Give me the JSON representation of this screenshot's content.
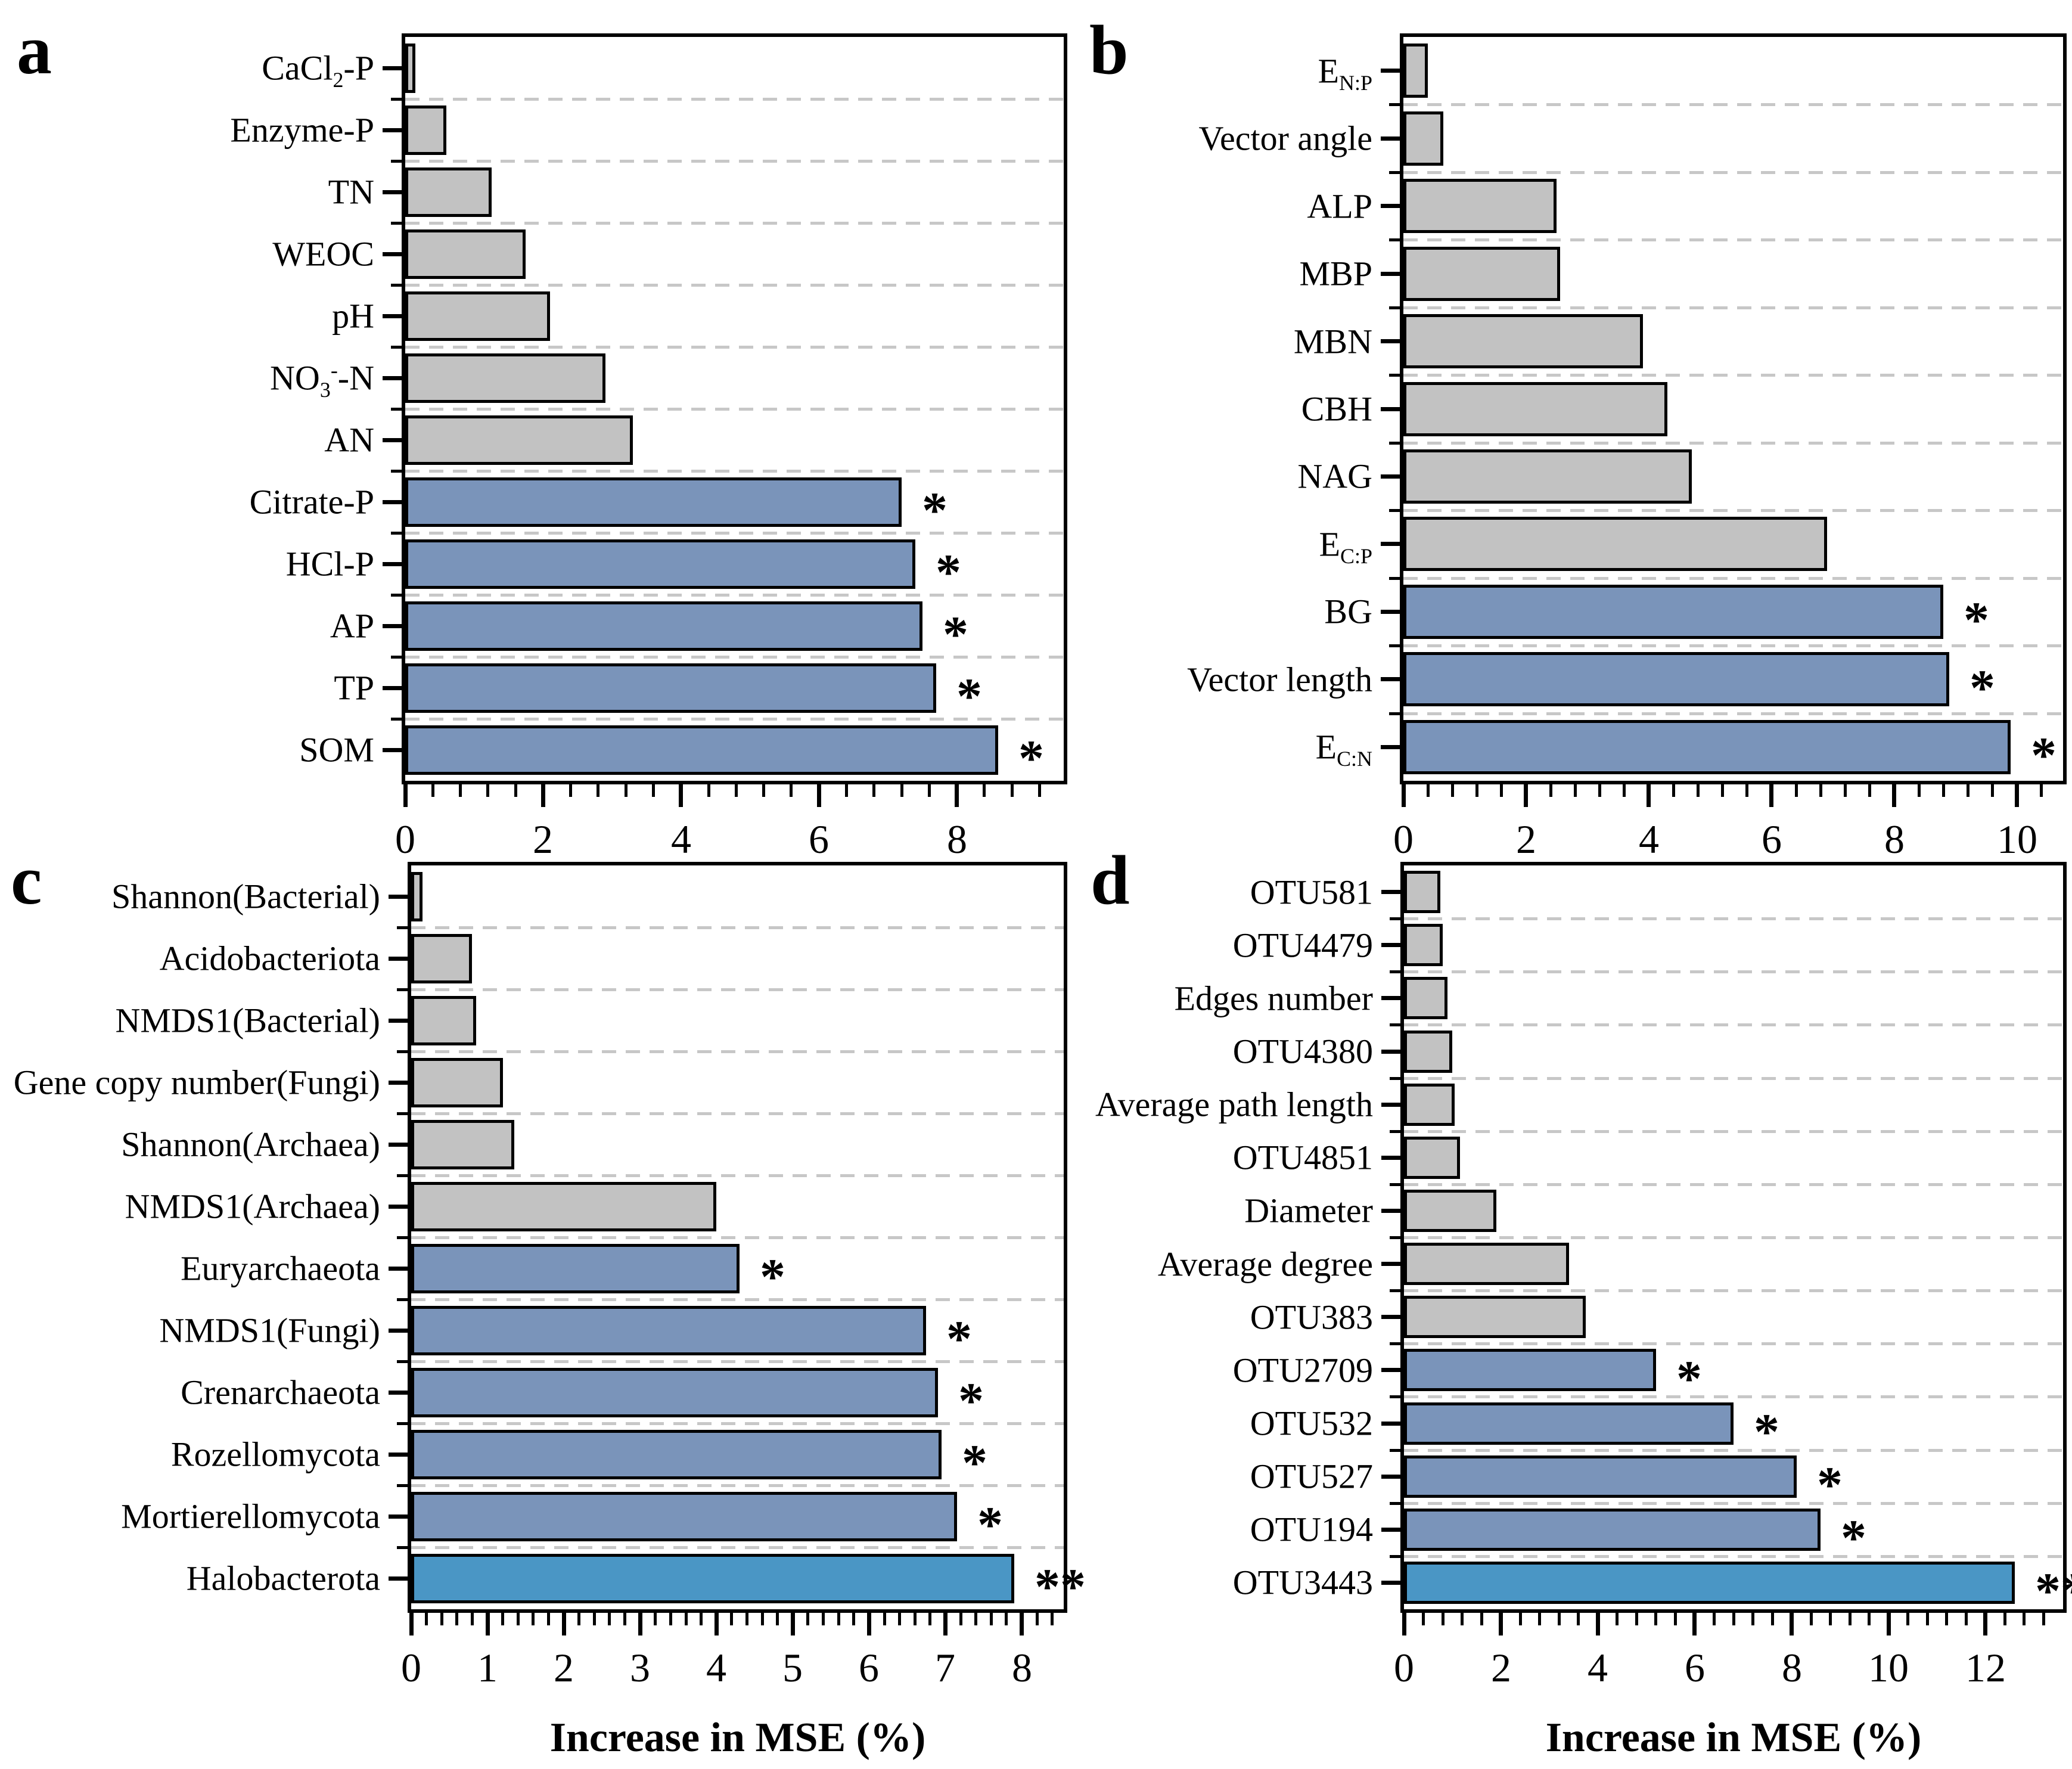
{
  "figure_background": "#ffffff",
  "colors": {
    "nonsignificant_fill": "#C2C2C2",
    "significant_fill": "#7A94BA",
    "highly_significant_fill": "#4A96C5",
    "bar_outline": "#000000",
    "gridline": "#C7C7C7",
    "axis": "#000000"
  },
  "significance_symbols": {
    "single": "*",
    "double": "**"
  },
  "xaxis_title": "Increase in MSE (%)",
  "chart_data": [
    {
      "id": "a",
      "type": "bar",
      "orientation": "horizontal",
      "panel_label": "a",
      "xlabel": null,
      "xlim": [
        0,
        9.55
      ],
      "xticks": [
        0,
        2,
        4,
        6,
        8
      ],
      "minor_step": 0.4,
      "grid": true,
      "rows": [
        {
          "label": "CaCl<sub>2</sub>-P",
          "value": 0.15,
          "sig": "",
          "color": "nonsignificant_fill"
        },
        {
          "label": "Enzyme-P",
          "value": 0.6,
          "sig": "",
          "color": "nonsignificant_fill"
        },
        {
          "label": "TN",
          "value": 1.25,
          "sig": "",
          "color": "nonsignificant_fill"
        },
        {
          "label": "WEOC",
          "value": 1.75,
          "sig": "",
          "color": "nonsignificant_fill"
        },
        {
          "label": "pH",
          "value": 2.1,
          "sig": "",
          "color": "nonsignificant_fill"
        },
        {
          "label": "NO<sub>3</sub><sup>-</sup>-N",
          "value": 2.9,
          "sig": "",
          "color": "nonsignificant_fill"
        },
        {
          "label": "AN",
          "value": 3.3,
          "sig": "",
          "color": "nonsignificant_fill"
        },
        {
          "label": "Citrate-P",
          "value": 7.2,
          "sig": "*",
          "color": "significant_fill"
        },
        {
          "label": "HCl-P",
          "value": 7.4,
          "sig": "*",
          "color": "significant_fill"
        },
        {
          "label": "AP",
          "value": 7.5,
          "sig": "*",
          "color": "significant_fill"
        },
        {
          "label": "TP",
          "value": 7.7,
          "sig": "*",
          "color": "significant_fill"
        },
        {
          "label": "SOM",
          "value": 8.6,
          "sig": "*",
          "color": "significant_fill"
        }
      ]
    },
    {
      "id": "b",
      "type": "bar",
      "orientation": "horizontal",
      "panel_label": "b",
      "xlabel": null,
      "xlim": [
        0,
        10.75
      ],
      "xticks": [
        0,
        2,
        4,
        6,
        8,
        10
      ],
      "minor_step": 0.4,
      "grid": true,
      "rows": [
        {
          "label": "E<sub>N:P</sub>",
          "value": 0.4,
          "sig": "",
          "color": "nonsignificant_fill"
        },
        {
          "label": "Vector angle",
          "value": 0.65,
          "sig": "",
          "color": "nonsignificant_fill"
        },
        {
          "label": "ALP",
          "value": 2.5,
          "sig": "",
          "color": "nonsignificant_fill"
        },
        {
          "label": "MBP",
          "value": 2.55,
          "sig": "",
          "color": "nonsignificant_fill"
        },
        {
          "label": "MBN",
          "value": 3.9,
          "sig": "",
          "color": "nonsignificant_fill"
        },
        {
          "label": "CBH",
          "value": 4.3,
          "sig": "",
          "color": "nonsignificant_fill"
        },
        {
          "label": "NAG",
          "value": 4.7,
          "sig": "",
          "color": "nonsignificant_fill"
        },
        {
          "label": "E<sub>C:P</sub>",
          "value": 6.9,
          "sig": "",
          "color": "nonsignificant_fill"
        },
        {
          "label": "BG",
          "value": 8.8,
          "sig": "*",
          "color": "significant_fill"
        },
        {
          "label": "Vector length",
          "value": 8.9,
          "sig": "*",
          "color": "significant_fill"
        },
        {
          "label": "E<sub>C:N</sub>",
          "value": 9.9,
          "sig": "*",
          "color": "significant_fill"
        }
      ]
    },
    {
      "id": "c",
      "type": "bar",
      "orientation": "horizontal",
      "panel_label": "c",
      "xlabel": "Increase in MSE (%)",
      "xlim": [
        0,
        8.55
      ],
      "xticks": [
        0,
        1,
        2,
        3,
        4,
        5,
        6,
        7,
        8
      ],
      "minor_step": 0.2,
      "grid": true,
      "rows": [
        {
          "label": "Shannon(Bacterial)",
          "value": 0.15,
          "sig": "",
          "color": "nonsignificant_fill"
        },
        {
          "label": "Acidobacteriota",
          "value": 0.8,
          "sig": "",
          "color": "nonsignificant_fill"
        },
        {
          "label": "NMDS1(Bacterial)",
          "value": 0.85,
          "sig": "",
          "color": "nonsignificant_fill"
        },
        {
          "label": "Gene copy number(Fungi)",
          "value": 1.2,
          "sig": "",
          "color": "nonsignificant_fill"
        },
        {
          "label": "Shannon(Archaea)",
          "value": 1.35,
          "sig": "",
          "color": "nonsignificant_fill"
        },
        {
          "label": "NMDS1(Archaea)",
          "value": 4.0,
          "sig": "",
          "color": "nonsignificant_fill"
        },
        {
          "label": "Euryarchaeota",
          "value": 4.3,
          "sig": "*",
          "color": "significant_fill"
        },
        {
          "label": "NMDS1(Fungi)",
          "value": 6.75,
          "sig": "*",
          "color": "significant_fill"
        },
        {
          "label": "Crenarchaeota",
          "value": 6.9,
          "sig": "*",
          "color": "significant_fill"
        },
        {
          "label": "Rozellomycota",
          "value": 6.95,
          "sig": "*",
          "color": "significant_fill"
        },
        {
          "label": "Mortierellomycota",
          "value": 7.15,
          "sig": "*",
          "color": "significant_fill"
        },
        {
          "label": "Halobacterota",
          "value": 7.9,
          "sig": "**",
          "color": "highly_significant_fill"
        }
      ]
    },
    {
      "id": "d",
      "type": "bar",
      "orientation": "horizontal",
      "panel_label": "d",
      "xlabel": "Increase in MSE (%)",
      "xlim": [
        0,
        13.6
      ],
      "xticks": [
        0,
        2,
        4,
        6,
        8,
        10,
        12
      ],
      "minor_step": 0.4,
      "grid": true,
      "rows": [
        {
          "label": "OTU581",
          "value": 0.75,
          "sig": "",
          "color": "nonsignificant_fill"
        },
        {
          "label": "OTU4479",
          "value": 0.8,
          "sig": "",
          "color": "nonsignificant_fill"
        },
        {
          "label": "Edges number",
          "value": 0.9,
          "sig": "",
          "color": "nonsignificant_fill"
        },
        {
          "label": "OTU4380",
          "value": 1.0,
          "sig": "",
          "color": "nonsignificant_fill"
        },
        {
          "label": "Average path length",
          "value": 1.05,
          "sig": "",
          "color": "nonsignificant_fill"
        },
        {
          "label": "OTU4851",
          "value": 1.15,
          "sig": "",
          "color": "nonsignificant_fill"
        },
        {
          "label": "Diameter",
          "value": 1.9,
          "sig": "",
          "color": "nonsignificant_fill"
        },
        {
          "label": "Average degree",
          "value": 3.4,
          "sig": "",
          "color": "nonsignificant_fill"
        },
        {
          "label": "OTU383",
          "value": 3.75,
          "sig": "",
          "color": "nonsignificant_fill"
        },
        {
          "label": "OTU2709",
          "value": 5.2,
          "sig": "*",
          "color": "significant_fill"
        },
        {
          "label": "OTU532",
          "value": 6.8,
          "sig": "*",
          "color": "significant_fill"
        },
        {
          "label": "OTU527",
          "value": 8.1,
          "sig": "*",
          "color": "significant_fill"
        },
        {
          "label": "OTU194",
          "value": 8.6,
          "sig": "*",
          "color": "significant_fill"
        },
        {
          "label": "OTU3443",
          "value": 12.6,
          "sig": "**",
          "color": "highly_significant_fill"
        }
      ]
    }
  ]
}
